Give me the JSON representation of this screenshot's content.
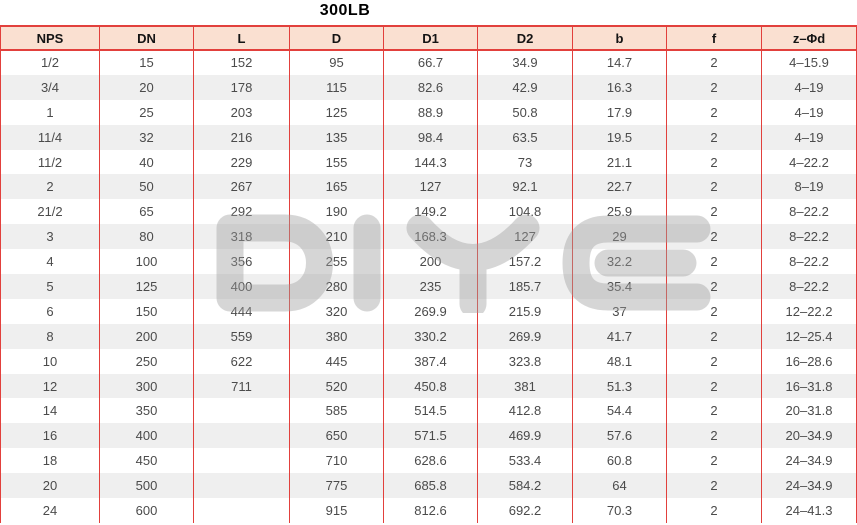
{
  "title": "300LB",
  "watermark": {
    "text": "DIYE"
  },
  "colors": {
    "border_red": "#e2403c",
    "header_bg": "#fae0d1",
    "row_alt_bg": "#efefef",
    "body_text": "#4b4b4b",
    "watermark_gray": "#9e9e9e"
  },
  "table": {
    "columns": [
      "NPS",
      "DN",
      "L",
      "D",
      "D1",
      "D2",
      "b",
      "f",
      "z–Φd"
    ],
    "rows": [
      [
        "1/2",
        "15",
        "152",
        "95",
        "66.7",
        "34.9",
        "14.7",
        "2",
        "4–15.9"
      ],
      [
        "3/4",
        "20",
        "178",
        "115",
        "82.6",
        "42.9",
        "16.3",
        "2",
        "4–19"
      ],
      [
        "1",
        "25",
        "203",
        "125",
        "88.9",
        "50.8",
        "17.9",
        "2",
        "4–19"
      ],
      [
        "11/4",
        "32",
        "216",
        "135",
        "98.4",
        "63.5",
        "19.5",
        "2",
        "4–19"
      ],
      [
        "11/2",
        "40",
        "229",
        "155",
        "144.3",
        "73",
        "21.1",
        "2",
        "4–22.2"
      ],
      [
        "2",
        "50",
        "267",
        "165",
        "127",
        "92.1",
        "22.7",
        "2",
        "8–19"
      ],
      [
        "21/2",
        "65",
        "292",
        "190",
        "149.2",
        "104.8",
        "25.9",
        "2",
        "8–22.2"
      ],
      [
        "3",
        "80",
        "318",
        "210",
        "168.3",
        "127",
        "29",
        "2",
        "8–22.2"
      ],
      [
        "4",
        "100",
        "356",
        "255",
        "200",
        "157.2",
        "32.2",
        "2",
        "8–22.2"
      ],
      [
        "5",
        "125",
        "400",
        "280",
        "235",
        "185.7",
        "35.4",
        "2",
        "8–22.2"
      ],
      [
        "6",
        "150",
        "444",
        "320",
        "269.9",
        "215.9",
        "37",
        "2",
        "12–22.2"
      ],
      [
        "8",
        "200",
        "559",
        "380",
        "330.2",
        "269.9",
        "41.7",
        "2",
        "12–25.4"
      ],
      [
        "10",
        "250",
        "622",
        "445",
        "387.4",
        "323.8",
        "48.1",
        "2",
        "16–28.6"
      ],
      [
        "12",
        "300",
        "711",
        "520",
        "450.8",
        "381",
        "51.3",
        "2",
        "16–31.8"
      ],
      [
        "14",
        "350",
        "",
        "585",
        "514.5",
        "412.8",
        "54.4",
        "2",
        "20–31.8"
      ],
      [
        "16",
        "400",
        "",
        "650",
        "571.5",
        "469.9",
        "57.6",
        "2",
        "20–34.9"
      ],
      [
        "18",
        "450",
        "",
        "710",
        "628.6",
        "533.4",
        "60.8",
        "2",
        "24–34.9"
      ],
      [
        "20",
        "500",
        "",
        "775",
        "685.8",
        "584.2",
        "64",
        "2",
        "24–34.9"
      ],
      [
        "24",
        "600",
        "",
        "915",
        "812.6",
        "692.2",
        "70.3",
        "2",
        "24–41.3"
      ]
    ]
  }
}
